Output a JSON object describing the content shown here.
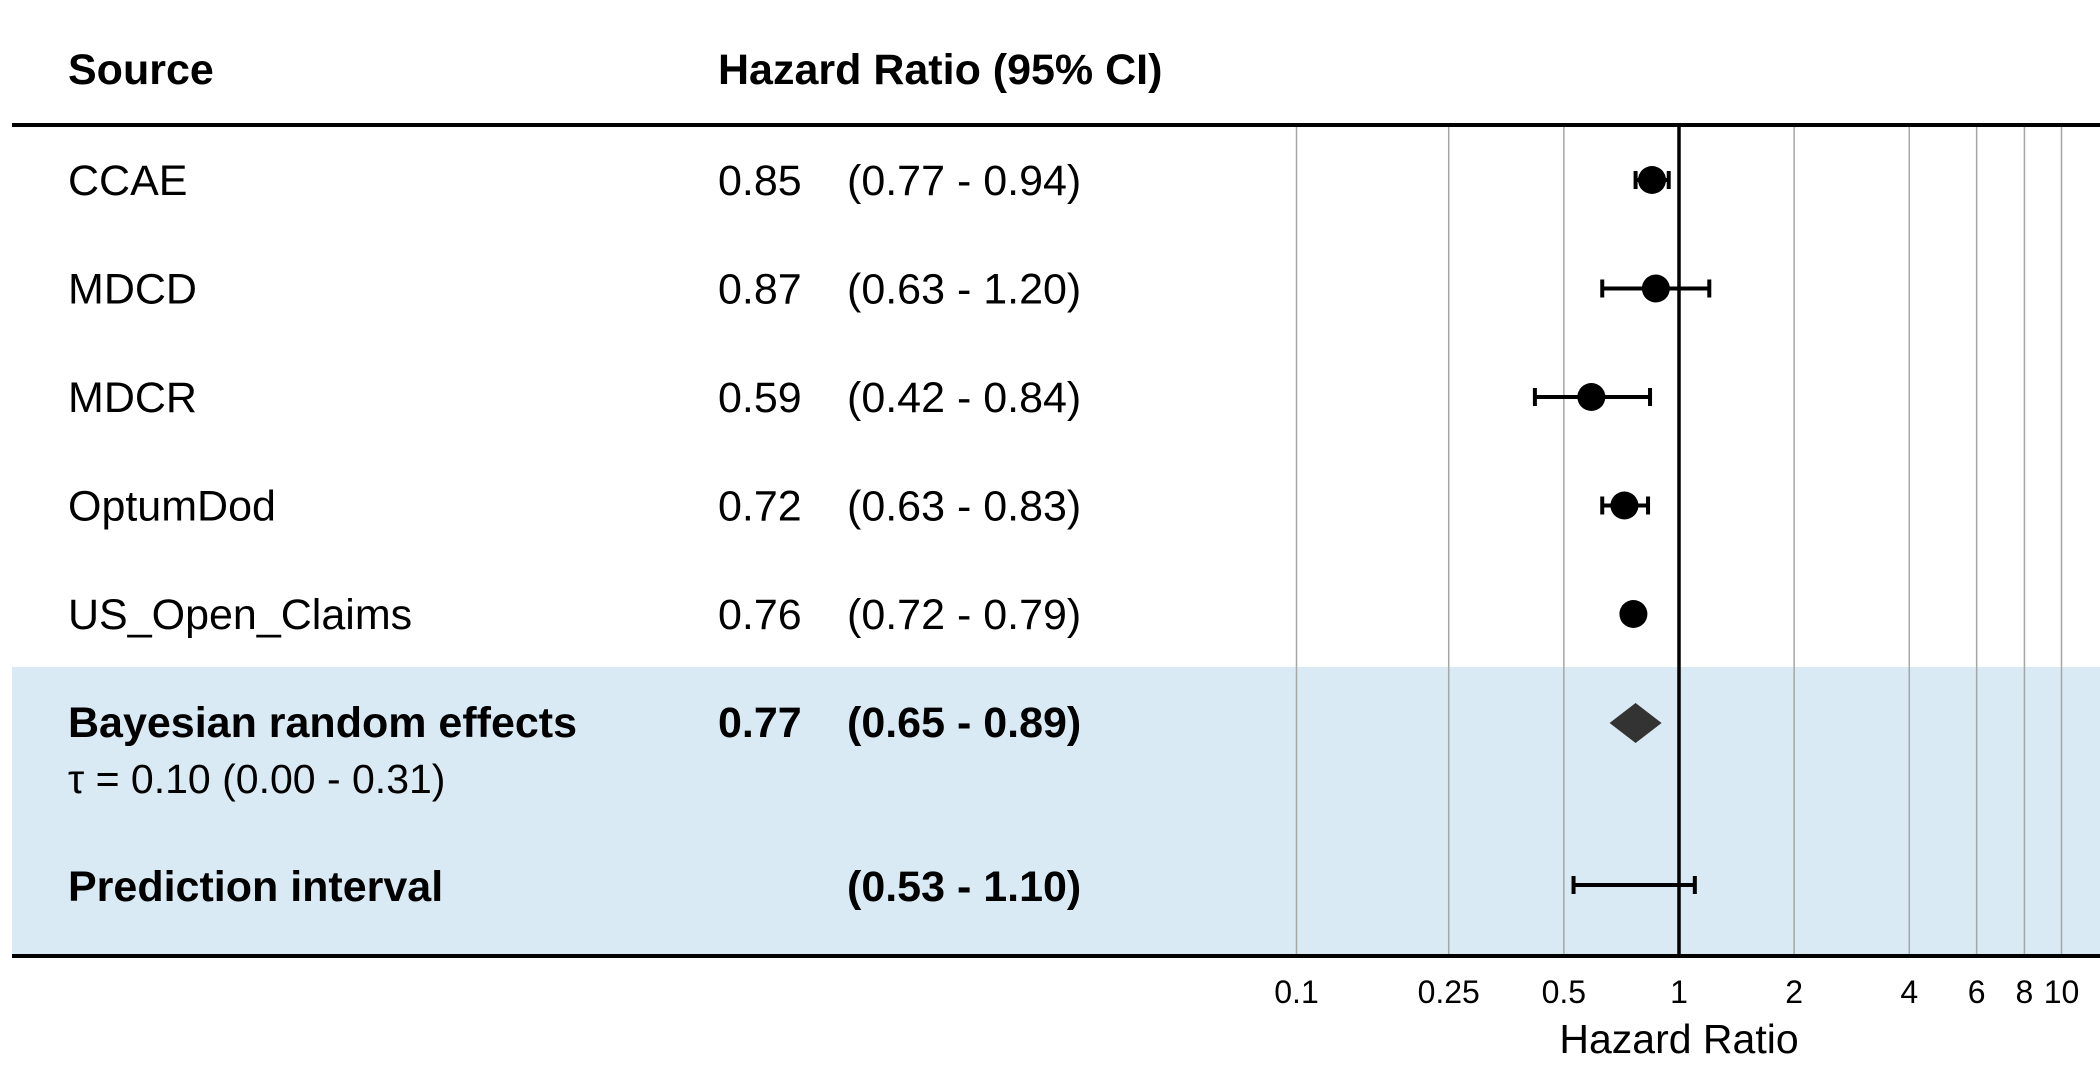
{
  "header": {
    "source": "Source",
    "hr": "Hazard Ratio (95% CI)"
  },
  "colors": {
    "summary_band": "#d9eaf4",
    "marker": "#000000",
    "summary_marker": "#333333",
    "gridline": "#a6a6a6"
  },
  "chart_data": {
    "type": "forest",
    "x_scale": "log",
    "xlabel": "Hazard Ratio",
    "x_ticks": [
      "0.1",
      "0.25",
      "0.5",
      "1",
      "2",
      "4",
      "6",
      "8",
      "10"
    ],
    "x_tick_values": [
      0.1,
      0.25,
      0.5,
      1,
      2,
      4,
      6,
      8,
      10
    ],
    "reference_line": 1,
    "rows": [
      {
        "source": "CCAE",
        "hr_text": "0.85",
        "ci_text": "(0.77 - 0.94)",
        "hr": 0.85,
        "lower": 0.77,
        "upper": 0.94,
        "marker": "circle"
      },
      {
        "source": "MDCD",
        "hr_text": "0.87",
        "ci_text": "(0.63 - 1.20)",
        "hr": 0.87,
        "lower": 0.63,
        "upper": 1.2,
        "marker": "circle"
      },
      {
        "source": "MDCR",
        "hr_text": "0.59",
        "ci_text": "(0.42 - 0.84)",
        "hr": 0.59,
        "lower": 0.42,
        "upper": 0.84,
        "marker": "circle"
      },
      {
        "source": "OptumDod",
        "hr_text": "0.72",
        "ci_text": "(0.63 - 0.83)",
        "hr": 0.72,
        "lower": 0.63,
        "upper": 0.83,
        "marker": "circle"
      },
      {
        "source": "US_Open_Claims",
        "hr_text": "0.76",
        "ci_text": "(0.72 - 0.79)",
        "hr": 0.76,
        "lower": 0.72,
        "upper": 0.79,
        "marker": "circle"
      }
    ],
    "summary": {
      "label": "Bayesian random effects",
      "tau_text": "τ = 0.10 (0.00 - 0.31)",
      "hr_text": "0.77",
      "ci_text": "(0.65 - 0.89)",
      "hr": 0.77,
      "lower": 0.65,
      "upper": 0.89,
      "marker": "diamond"
    },
    "prediction": {
      "label": "Prediction interval",
      "ci_text": "(0.53 - 1.10)",
      "lower": 0.53,
      "upper": 1.1
    }
  }
}
